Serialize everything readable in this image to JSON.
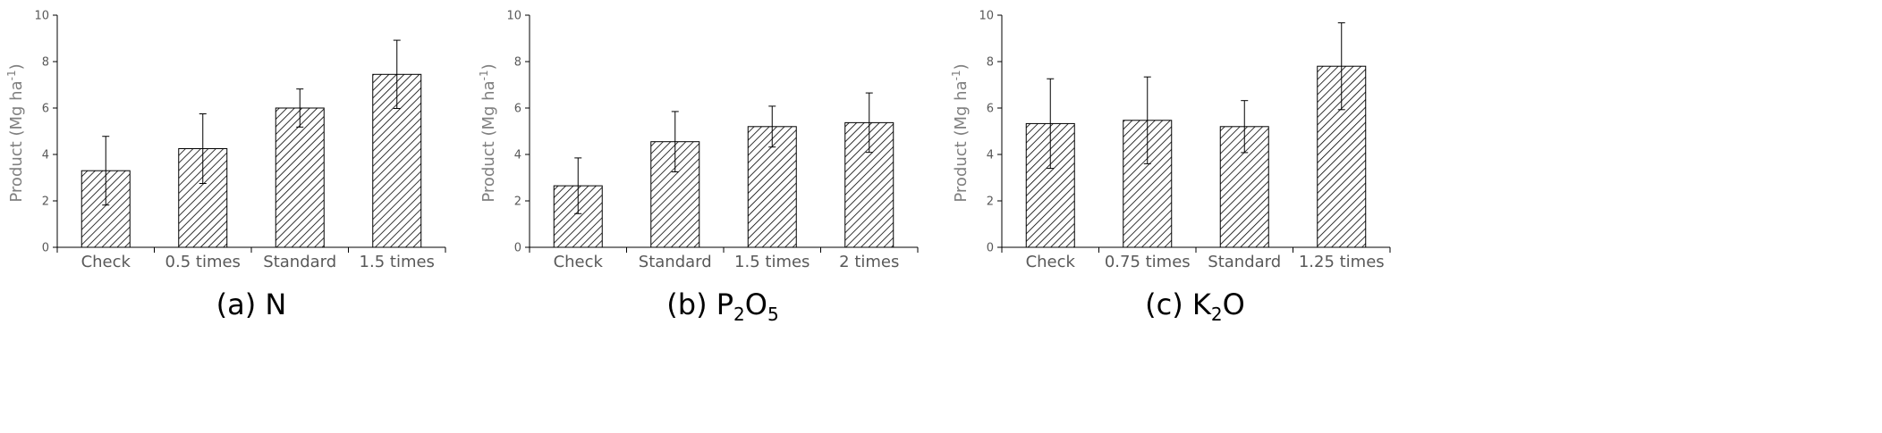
{
  "chart_data": [
    {
      "type": "bar",
      "caption": {
        "prefix": "(a) ",
        "parts": [
          {
            "t": "N"
          }
        ]
      },
      "ylabel": {
        "prefix": "Product (Mg ha",
        "sup": "-1",
        "suffix": ")"
      },
      "ylim": [
        0,
        10
      ],
      "yticks": [
        "0",
        "2",
        "4",
        "6",
        "8",
        "10"
      ],
      "categories": [
        "Check",
        "0.5 times",
        "Standard",
        "1.5 times"
      ],
      "values": [
        3.3,
        4.25,
        6.0,
        7.45
      ],
      "error": [
        1.48,
        1.5,
        0.82,
        1.47
      ]
    },
    {
      "type": "bar",
      "caption": {
        "prefix": "(b) ",
        "parts": [
          {
            "t": "P"
          },
          {
            "t": "2",
            "sub": true
          },
          {
            "t": "O"
          },
          {
            "t": "5",
            "sub": true
          }
        ]
      },
      "ylabel": {
        "prefix": "Product (Mg ha",
        "sup": "-1",
        "suffix": ")"
      },
      "ylim": [
        0,
        10
      ],
      "yticks": [
        "0",
        "2",
        "4",
        "6",
        "8",
        "10"
      ],
      "categories": [
        "Check",
        "Standard",
        "1.5 times",
        "2 times"
      ],
      "values": [
        2.65,
        4.55,
        5.2,
        5.37
      ],
      "error": [
        1.2,
        1.3,
        0.88,
        1.28
      ]
    },
    {
      "type": "bar",
      "caption": {
        "prefix": "(c) ",
        "parts": [
          {
            "t": "K"
          },
          {
            "t": "2",
            "sub": true
          },
          {
            "t": "O"
          }
        ]
      },
      "ylabel": {
        "prefix": "Product (Mg ha",
        "sup": "-1",
        "suffix": ")"
      },
      "ylim": [
        0,
        10
      ],
      "yticks": [
        "0",
        "2",
        "4",
        "6",
        "8",
        "10"
      ],
      "categories": [
        "Check",
        "0.75 times",
        "Standard",
        "1.25 times"
      ],
      "values": [
        5.33,
        5.47,
        5.2,
        7.8
      ],
      "error": [
        1.93,
        1.87,
        1.12,
        1.87
      ]
    }
  ],
  "colors": {
    "bar_fill": "#ffffff",
    "bar_stroke": "#000000",
    "hatch": "#000000",
    "axis": "#000000",
    "tick_text": "#595959",
    "ylabel_text": "#808080"
  }
}
